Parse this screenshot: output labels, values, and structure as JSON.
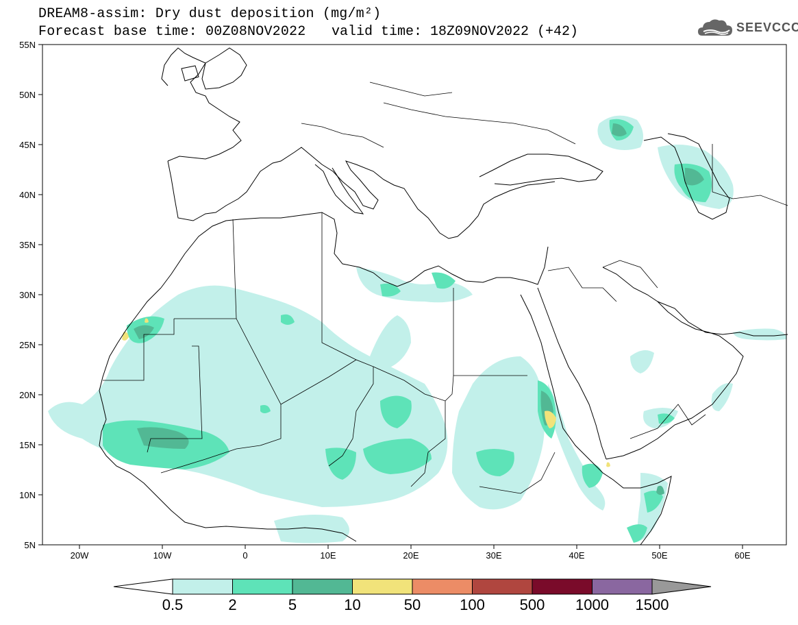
{
  "header": {
    "title": "DREAM8-assim: Dry dust deposition (mg/m²)",
    "base_time": "Forecast base time: 00Z08NOV2022",
    "valid_time": "valid time: 18Z09NOV2022 (+42)",
    "logo_text": "SEEVCCC"
  },
  "axes": {
    "lat_labels": [
      "55N",
      "50N",
      "45N",
      "40N",
      "35N",
      "30N",
      "25N",
      "20N",
      "15N",
      "10N",
      "5N"
    ],
    "lon_labels": [
      "20W",
      "10W",
      "0",
      "10E",
      "20E",
      "30E",
      "40E",
      "50E",
      "60E"
    ]
  },
  "colorbar": {
    "colors": [
      "#c2f0ea",
      "#5ee3b8",
      "#52b894",
      "#f1e37a",
      "#ec8c66",
      "#b0463f",
      "#7a0b2a",
      "#8a67a0"
    ],
    "end_low_color": "#ffffff",
    "end_high_color": "#999999",
    "labels": [
      "0.5",
      "2",
      "5",
      "10",
      "50",
      "100",
      "500",
      "1000",
      "1500"
    ]
  },
  "dust_colors": {
    "light": "#c2f0ea",
    "medium": "#5ee3b8",
    "dark": "#52b894",
    "yellow": "#f1e37a"
  }
}
